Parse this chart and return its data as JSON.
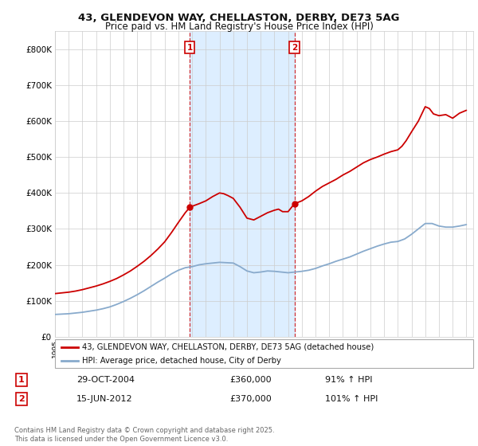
{
  "title1": "43, GLENDEVON WAY, CHELLASTON, DERBY, DE73 5AG",
  "title2": "Price paid vs. HM Land Registry's House Price Index (HPI)",
  "legend_line1": "43, GLENDEVON WAY, CHELLASTON, DERBY, DE73 5AG (detached house)",
  "legend_line2": "HPI: Average price, detached house, City of Derby",
  "transaction1_label": "1",
  "transaction1_date": "29-OCT-2004",
  "transaction1_price": "£360,000",
  "transaction1_hpi": "91% ↑ HPI",
  "transaction2_label": "2",
  "transaction2_date": "15-JUN-2012",
  "transaction2_price": "£370,000",
  "transaction2_hpi": "101% ↑ HPI",
  "footnote": "Contains HM Land Registry data © Crown copyright and database right 2025.\nThis data is licensed under the Open Government Licence v3.0.",
  "marker1_x": 2004.83,
  "marker2_x": 2012.46,
  "marker1_y": 360000,
  "marker2_y": 370000,
  "red_line_color": "#cc0000",
  "blue_line_color": "#88aacc",
  "shade_color": "#ddeeff",
  "ylim_min": 0,
  "ylim_max": 850000,
  "yticks": [
    0,
    100000,
    200000,
    300000,
    400000,
    500000,
    600000,
    700000,
    800000
  ],
  "ytick_labels": [
    "£0",
    "£100K",
    "£200K",
    "£300K",
    "£400K",
    "£500K",
    "£600K",
    "£700K",
    "£800K"
  ],
  "xmin": 1995,
  "xmax": 2025.5,
  "background_color": "#ffffff",
  "grid_color": "#cccccc"
}
